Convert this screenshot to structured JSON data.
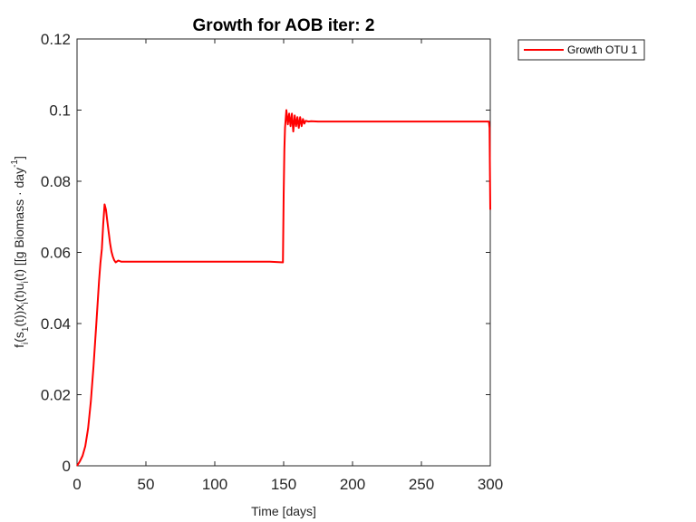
{
  "chart_data": {
    "type": "line",
    "title": "Growth for AOB iter: 2",
    "xlabel": "Time [days]",
    "ylabel_parts": [
      "f",
      "i",
      "(s",
      "1",
      "(t))x",
      "i",
      "(t)u",
      "i",
      "(t) [[g Biomass · day",
      "-1",
      "]"
    ],
    "xlim": [
      0,
      300
    ],
    "ylim": [
      0,
      0.12
    ],
    "xticks": [
      0,
      50,
      100,
      150,
      200,
      250,
      300
    ],
    "yticks": [
      0,
      0.02,
      0.04,
      0.06,
      0.08,
      0.1,
      0.12
    ],
    "xtick_labels": [
      "0",
      "50",
      "100",
      "150",
      "200",
      "250",
      "300"
    ],
    "ytick_labels": [
      "0",
      "0.02",
      "0.04",
      "0.06",
      "0.08",
      "0.1",
      "0.12"
    ],
    "grid": false,
    "legend_position": "outside-top-right",
    "series": [
      {
        "name": "Growth OTU 1",
        "color": "#ff0000",
        "x": [
          0,
          2,
          4,
          6,
          8,
          10,
          12,
          14,
          16,
          17,
          18,
          19,
          20,
          21,
          22,
          23,
          24,
          25,
          26,
          27,
          28,
          30,
          32,
          35,
          40,
          60,
          100,
          140,
          149.5,
          150,
          150.5,
          151,
          152,
          153,
          154,
          155,
          156,
          157,
          158,
          159,
          160,
          161,
          162,
          163,
          164,
          165,
          166,
          168,
          170,
          175,
          180,
          200,
          250,
          290,
          299,
          299.5,
          300
        ],
        "y": [
          0.0,
          0.0012,
          0.0028,
          0.0055,
          0.0105,
          0.018,
          0.028,
          0.04,
          0.052,
          0.057,
          0.061,
          0.068,
          0.0735,
          0.072,
          0.0688,
          0.0655,
          0.0625,
          0.0602,
          0.0588,
          0.0578,
          0.0572,
          0.0577,
          0.0574,
          0.0574,
          0.0574,
          0.0574,
          0.0574,
          0.0574,
          0.0572,
          0.076,
          0.089,
          0.095,
          0.1,
          0.096,
          0.099,
          0.0955,
          0.099,
          0.094,
          0.0985,
          0.0955,
          0.098,
          0.095,
          0.098,
          0.0955,
          0.0975,
          0.0962,
          0.097,
          0.0968,
          0.0969,
          0.0968,
          0.0968,
          0.0968,
          0.0968,
          0.0968,
          0.0968,
          0.095,
          0.072
        ]
      }
    ]
  }
}
